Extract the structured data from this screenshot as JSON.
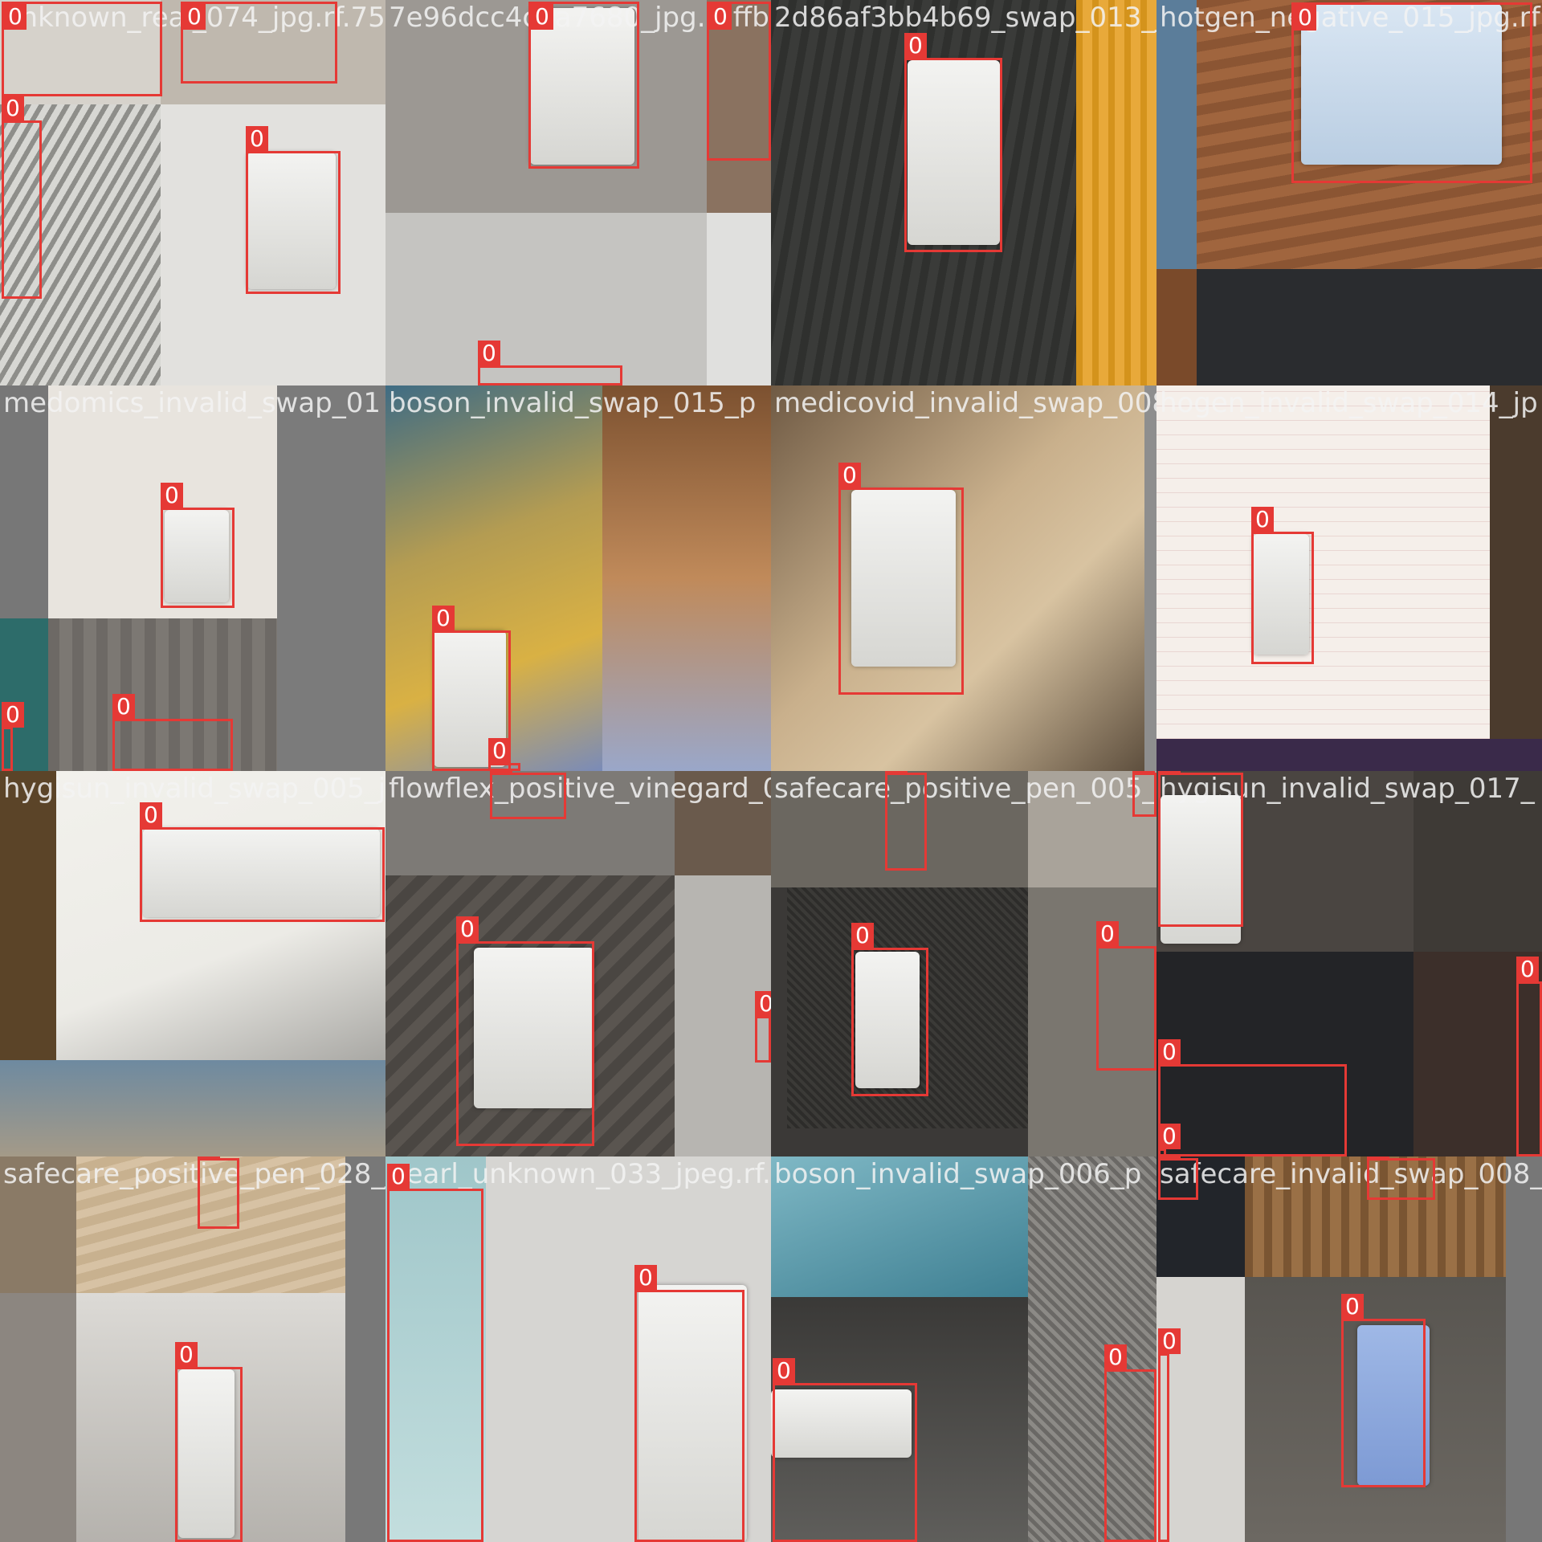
{
  "image": {
    "description_free": true,
    "box_color": "#e53935",
    "title_color": "#f4f4f4"
  },
  "tiles": [
    {
      "title": "unknown_real_074_jpg.rf.75",
      "boxes": [
        {
          "label": "0"
        },
        {
          "label": "0"
        },
        {
          "label": "0"
        },
        {
          "label": "0"
        }
      ]
    },
    {
      "title": "7e96dcc4c3a7680_jpg.rf.ffb",
      "boxes": [
        {
          "label": "0"
        },
        {
          "label": "0"
        },
        {
          "label": "0"
        }
      ]
    },
    {
      "title": "2d86af3bb4b69_swap_013_jp",
      "boxes": [
        {
          "label": "0"
        }
      ]
    },
    {
      "title": "hotgen_negative_015_jpg.rf",
      "boxes": [
        {
          "label": "0"
        }
      ]
    },
    {
      "title": "medomics_invalid_swap_01",
      "boxes": [
        {
          "label": "0"
        },
        {
          "label": "0"
        },
        {
          "label": "0"
        }
      ]
    },
    {
      "title": "boson_invalid_swap_015_p",
      "boxes": [
        {
          "label": "0"
        },
        {
          "label": "0"
        }
      ]
    },
    {
      "title": "medicovid_invalid_swap_008",
      "boxes": [
        {
          "label": "0"
        }
      ]
    },
    {
      "title": "hogen_invalid_swap_014_jp",
      "boxes": [
        {
          "label": "0"
        }
      ]
    },
    {
      "title": "hygisun_invalid_swap_005_jp",
      "boxes": [
        {
          "label": "0"
        }
      ]
    },
    {
      "title": "flowflex_positive_vinegard_020_jp",
      "boxes": [
        {
          "label": "0"
        },
        {
          "label": "0"
        },
        {
          "label": "0"
        }
      ]
    },
    {
      "title": "safecare_positive_pen_005_jp",
      "boxes": [
        {
          "label": "0"
        },
        {
          "label": "0"
        },
        {
          "label": "0"
        },
        {
          "label": "0"
        }
      ]
    },
    {
      "title": "hygisun_invalid_swap_017_",
      "boxes": [
        {
          "label": "0"
        },
        {
          "label": "0"
        },
        {
          "label": "0"
        },
        {
          "label": "0"
        }
      ]
    },
    {
      "title": "safecare_positive_pen_028_jp",
      "boxes": [
        {
          "label": "0"
        },
        {
          "label": "0"
        }
      ]
    },
    {
      "title": "pearl_unknown_033_jpeg.rf.0",
      "boxes": [
        {
          "label": "0"
        },
        {
          "label": "0"
        }
      ]
    },
    {
      "title": "boson_invalid_swap_006_p",
      "boxes": [
        {
          "label": "0"
        },
        {
          "label": "0"
        }
      ]
    },
    {
      "title": "safecare_invalid_swap_008_",
      "boxes": [
        {
          "label": "0"
        },
        {
          "label": "0"
        },
        {
          "label": "0"
        },
        {
          "label": "0"
        }
      ]
    }
  ]
}
